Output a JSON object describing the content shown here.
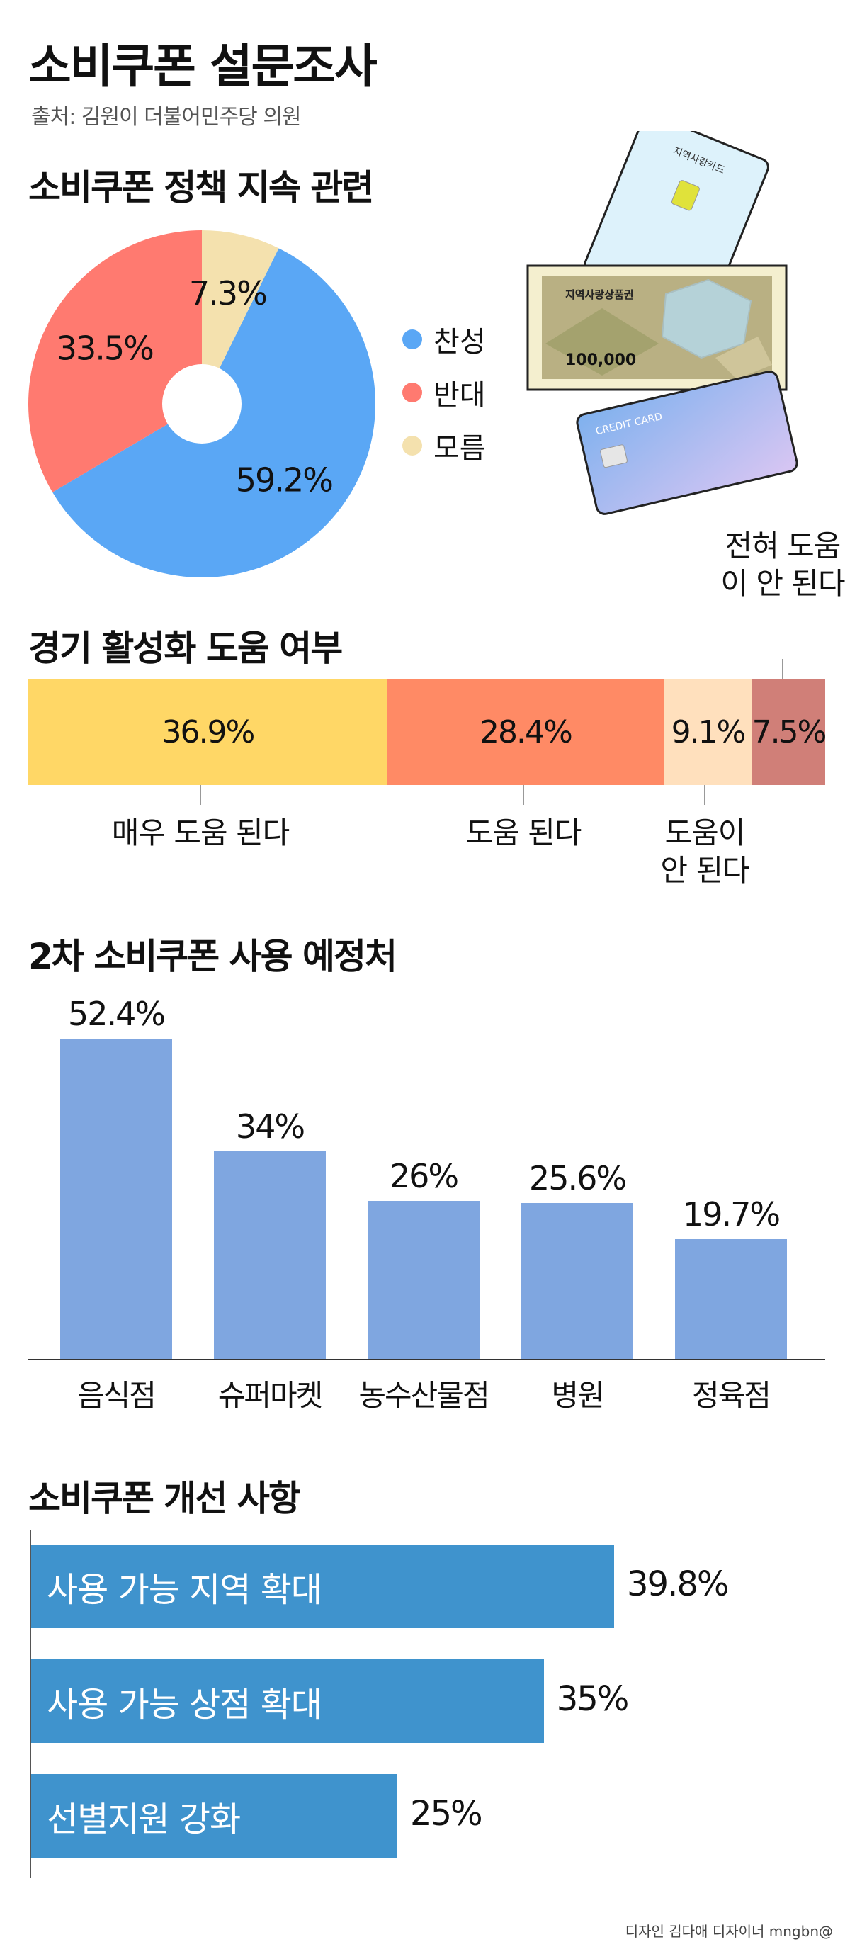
{
  "title": "소비쿠폰 설문조사",
  "source": "출처: 김원이 더불어민주당 의원",
  "credit": "디자인 김다애 디자이너 mngbn@",
  "illustration": {
    "voucher_label": "지역사랑상품권",
    "voucher_amount": "100,000",
    "card1_label": "지역사랑카드",
    "card2_label": "CREDIT CARD"
  },
  "colors": {
    "pie_support": "#5AA7F5",
    "pie_oppose": "#FF7A70",
    "pie_unknown": "#F4E1AE",
    "help_very": "#FFD766",
    "help_yes": "#FF8A65",
    "help_no": "#FFE0BD",
    "help_none": "#D07F78",
    "bar_usage": "#7FA6E0",
    "bar_improve": "#3F93CD"
  },
  "chart_data": [
    {
      "type": "pie",
      "title": "소비쿠폰 정책 지속 관련",
      "legend": "right",
      "slices": [
        {
          "name": "찬성",
          "value": 59.2,
          "label": "59.2%"
        },
        {
          "name": "반대",
          "value": 33.5,
          "label": "33.5%"
        },
        {
          "name": "모름",
          "value": 7.3,
          "label": "7.3%"
        }
      ]
    },
    {
      "type": "bar",
      "orientation": "stacked-horizontal",
      "title": "경기 활성화 도움 여부",
      "segments": [
        {
          "name": "매우 도움 된다",
          "value": 36.9,
          "label": "36.9%"
        },
        {
          "name": "도움 된다",
          "value": 28.4,
          "label": "28.4%"
        },
        {
          "name": "도움이 안 된다",
          "value": 9.1,
          "label": "9.1%"
        },
        {
          "name": "전혀 도움이 안 된다",
          "value": 7.5,
          "label": "7.5%"
        }
      ]
    },
    {
      "type": "bar",
      "title": "2차 소비쿠폰 사용 예정처",
      "categories": [
        "음식점",
        "슈퍼마켓",
        "농수산물점",
        "병원",
        "정육점"
      ],
      "values": [
        52.4,
        34,
        26,
        25.6,
        19.7
      ],
      "labels": [
        "52.4%",
        "34%",
        "26%",
        "25.6%",
        "19.7%"
      ],
      "ylim": [
        0,
        60
      ]
    },
    {
      "type": "bar",
      "orientation": "horizontal",
      "title": "소비쿠폰 개선 사항",
      "categories": [
        "사용 가능 지역 확대",
        "사용 가능 상점 확대",
        "선별지원 강화"
      ],
      "values": [
        39.8,
        35,
        25
      ],
      "labels": [
        "39.8%",
        "35%",
        "25%"
      ],
      "xlim": [
        0,
        50
      ]
    }
  ]
}
